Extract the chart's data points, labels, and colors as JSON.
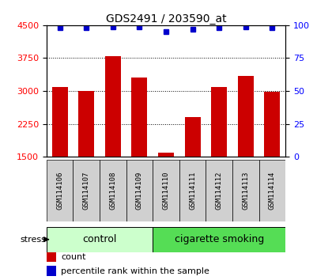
{
  "title": "GDS2491 / 203590_at",
  "samples": [
    "GSM114106",
    "GSM114107",
    "GSM114108",
    "GSM114109",
    "GSM114110",
    "GSM114111",
    "GSM114112",
    "GSM114113",
    "GSM114114"
  ],
  "counts": [
    3100,
    3000,
    3800,
    3300,
    1600,
    2400,
    3100,
    3350,
    2980
  ],
  "percentile_ranks": [
    98,
    98,
    99,
    99,
    95,
    97,
    98,
    99,
    98
  ],
  "groups": [
    {
      "label": "control",
      "start": 0,
      "end": 4,
      "color": "#ccffcc"
    },
    {
      "label": "cigarette smoking",
      "start": 4,
      "end": 9,
      "color": "#55dd55"
    }
  ],
  "bar_color": "#cc0000",
  "dot_color": "#0000cc",
  "ylim_left": [
    1500,
    4500
  ],
  "ylim_right": [
    0,
    100
  ],
  "yticks_left": [
    1500,
    2250,
    3000,
    3750,
    4500
  ],
  "yticks_right": [
    0,
    25,
    50,
    75,
    100
  ],
  "grid_values": [
    2250,
    3000,
    3750
  ],
  "stress_label": "stress",
  "legend_count_label": "count",
  "legend_pct_label": "percentile rank within the sample",
  "bar_width": 0.6,
  "sample_box_color": "#d0d0d0",
  "fig_width": 4.2,
  "fig_height": 3.54,
  "dpi": 100
}
